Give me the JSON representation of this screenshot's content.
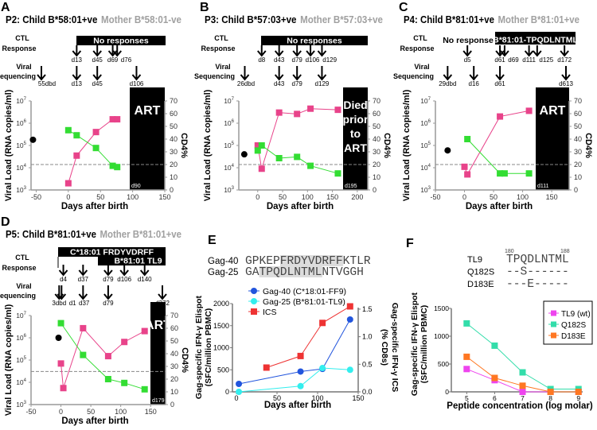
{
  "chart_data": [
    {
      "type": "line",
      "letter": "A",
      "title_child": "P2: Child B*58:01+ve",
      "title_mother": "Mother B*58:01-ve",
      "ctl_label": [
        "CTL",
        "Response"
      ],
      "seq_label": [
        "Viral",
        "Sequencing"
      ],
      "ctl_bars": [
        {
          "text": "No responses"
        }
      ],
      "ctl_note": null,
      "ctl_arrows": [
        {
          "day": 13,
          "label": "d13"
        },
        {
          "day": 45,
          "label": "d45"
        },
        {
          "day": 69,
          "label": "d69"
        },
        {
          "day": 76,
          "label": "d76"
        }
      ],
      "seq_arrows": [
        {
          "day": -55,
          "label": "55dbd"
        },
        {
          "day": 13,
          "label": "d13"
        },
        {
          "day": 45,
          "label": "d45"
        },
        {
          "day": 106,
          "label": "d106"
        }
      ],
      "xlabel": "Days after birth",
      "ylabel_left": "Viral Load (RNA copies/ml)",
      "ylabel_right": "CD4%",
      "xlim": [
        -58,
        150
      ],
      "xticks": [
        -50,
        0,
        50,
        100,
        150
      ],
      "ylim_left_log10": [
        3,
        7
      ],
      "yticks_left_exp": [
        3,
        4,
        5,
        6,
        7
      ],
      "log_base": "10",
      "ylim_right": [
        0,
        70
      ],
      "yticks_right": [
        0,
        10,
        20,
        30,
        40,
        50,
        60,
        70
      ],
      "cd4_threshold": 20,
      "treatment_box": {
        "lines": [
          "ART"
        ],
        "start_label": "d90"
      },
      "mother_viral_load": {
        "day": -55,
        "value": 180000,
        "color": "#000000"
      },
      "series": [
        {
          "name": "Viral load",
          "axis": "left",
          "color": "#e8438a",
          "x": [
            0,
            13,
            43,
            69,
            76
          ],
          "y": [
            2000,
            35000,
            400000,
            1500000,
            1500000
          ]
        },
        {
          "name": "CD4%",
          "axis": "right",
          "color": "#33dd33",
          "x": [
            0,
            13,
            43,
            69,
            76
          ],
          "y": [
            47,
            43,
            33,
            19,
            18
          ]
        }
      ]
    },
    {
      "type": "line",
      "letter": "B",
      "title_child": "P3:  Child B*57:03+ve",
      "title_mother": "Mother B*57:03+ve",
      "ctl_label": [
        "CTL",
        "Response"
      ],
      "seq_label": [
        "Viral",
        "Sequencing"
      ],
      "ctl_bars": [
        {
          "text": "No responses"
        }
      ],
      "ctl_note": null,
      "ctl_arrows": [
        {
          "day": 8,
          "label": "d8"
        },
        {
          "day": 43,
          "label": "d43"
        },
        {
          "day": 79,
          "label": "d79"
        },
        {
          "day": 106,
          "label": "d106"
        },
        {
          "day": 129,
          "label": "d129"
        }
      ],
      "seq_arrows": [
        {
          "day": -26,
          "label": "26dbd"
        },
        {
          "day": 43,
          "label": "d43"
        },
        {
          "day": 79,
          "label": "d79"
        },
        {
          "day": 129,
          "label": "d129"
        }
      ],
      "xlabel": "Days after birth",
      "ylabel_left": "Viral Load (RNA copies/ml)",
      "ylabel_right": "CD4%",
      "xlim": [
        -38,
        221
      ],
      "xticks": [
        0,
        50,
        100,
        150,
        200
      ],
      "ylim_left_log10": [
        3,
        7
      ],
      "yticks_left_exp": [
        3,
        4,
        5,
        6,
        7
      ],
      "log_base": "10",
      "ylim_right": [
        0,
        70
      ],
      "yticks_right": [
        0,
        10,
        20,
        30,
        40,
        50,
        60,
        70
      ],
      "cd4_threshold": 20,
      "treatment_box": {
        "lines": [
          "Died",
          "prior",
          "to",
          "ART"
        ],
        "start_label": "d195"
      },
      "mother_viral_load": {
        "day": -27,
        "value": 40000,
        "color": "#000000"
      },
      "series": [
        {
          "name": "Viral load",
          "axis": "left",
          "color": "#e8438a",
          "x": [
            0,
            8,
            43,
            79,
            106,
            161
          ],
          "y": [
            100000,
            9000,
            3000000,
            2600000,
            4500000,
            4000000
          ]
        },
        {
          "name": "CD4%",
          "axis": "right",
          "color": "#33dd33",
          "x": [
            0,
            8,
            43,
            79,
            106,
            161
          ],
          "y": [
            31,
            35,
            25,
            26,
            19,
            13
          ]
        }
      ]
    },
    {
      "type": "line",
      "letter": "C",
      "title_child": "P4: Child B*81:01+ve",
      "title_mother": "Mother B*81:01+ve",
      "ctl_label": [
        "CTL",
        "Response"
      ],
      "seq_label": [
        "Viral",
        "Sequencing"
      ],
      "ctl_bars": [
        {
          "text": "B*81:01-TPQDLNTML"
        }
      ],
      "ctl_note": "No response",
      "ctl_arrows": [
        {
          "day": 5,
          "label": "d5"
        },
        {
          "day": 61,
          "label": "d61"
        },
        {
          "day": 69,
          "label": "d69"
        },
        {
          "day": 111,
          "label": "d111"
        },
        {
          "day": 125,
          "label": "d125"
        },
        {
          "day": 172,
          "label": "d172"
        }
      ],
      "seq_arrows": [
        {
          "day": -29,
          "label": "29dbd"
        },
        {
          "day": 16,
          "label": "d16"
        },
        {
          "day": 61,
          "label": "d61"
        },
        {
          "day": 613,
          "label": "d613"
        }
      ],
      "xlabel": "Days after birth",
      "ylabel_left": "Viral Load (RNA copies/ml)",
      "ylabel_right": "CD4%",
      "xlim": [
        -50,
        180
      ],
      "xticks": [
        -50,
        0,
        50,
        100,
        150
      ],
      "ylim_left_log10": [
        3,
        7
      ],
      "yticks_left_exp": [
        3,
        4,
        5,
        6,
        7
      ],
      "log_base": "10",
      "ylim_right": [
        0,
        70
      ],
      "yticks_right": [
        0,
        10,
        20,
        30,
        40,
        50,
        60,
        70
      ],
      "cd4_threshold": 20,
      "treatment_box": {
        "lines": [
          "ART"
        ],
        "start_label": "d111"
      },
      "mother_viral_load": {
        "day": -29,
        "value": 60000,
        "color": "#000000"
      },
      "series": [
        {
          "name": "Viral load",
          "axis": "left",
          "color": "#e8438a",
          "x": [
            0,
            5,
            61,
            111
          ],
          "y": [
            11000,
            5000,
            2000000,
            3600000
          ]
        },
        {
          "name": "CD4%",
          "axis": "right",
          "color": "#33dd33",
          "x": [
            5,
            61,
            69,
            111
          ],
          "y": [
            40,
            13,
            13,
            13
          ]
        }
      ]
    },
    {
      "type": "line",
      "letter": "D",
      "title_child": "P5: Child B*81:01+ve",
      "title_mother": "Mother B*81:01+ve",
      "ctl_label": [
        "CTL",
        "Response"
      ],
      "seq_label": [
        "Viral",
        "Sequencing"
      ],
      "ctl_bars": [
        {
          "text": "C*18:01 FRDYVDRFF"
        },
        {
          "text": "B*81:01 TL9"
        }
      ],
      "ctl_note": null,
      "ctl_arrows": [
        {
          "day": 4,
          "label": "d4"
        },
        {
          "day": 37,
          "label": "d37"
        },
        {
          "day": 79,
          "label": "d79"
        },
        {
          "day": 106,
          "label": "d106"
        },
        {
          "day": 140,
          "label": "d140"
        }
      ],
      "seq_arrows": [
        {
          "day": -3,
          "label": "3dbd"
        },
        {
          "day": 1,
          "label": "d1"
        },
        {
          "day": 37,
          "label": "d37"
        },
        {
          "day": 79,
          "label": "d79"
        },
        {
          "day": 372,
          "label": "d372"
        }
      ],
      "xlabel": "Days after birth",
      "ylabel_left": "Viral Load (RNA copies/ml)",
      "ylabel_right": "CD4%",
      "xlim": [
        -50,
        175
      ],
      "xticks": [
        -50,
        0,
        50,
        100,
        150
      ],
      "ylim_left_log10": [
        3,
        7
      ],
      "yticks_left_exp": [
        3,
        4,
        5,
        6,
        7
      ],
      "log_base": "10",
      "ylim_right": [
        0,
        70
      ],
      "yticks_right": [
        0,
        10,
        20,
        30,
        40,
        50,
        60,
        70
      ],
      "cd4_threshold": 26,
      "treatment_box": {
        "lines": [
          "ART"
        ],
        "start_label": "d179"
      },
      "mother_viral_load": {
        "day": -4,
        "value": 1000000,
        "color": "#000000"
      },
      "series": [
        {
          "name": "Viral load",
          "axis": "left",
          "color": "#e8438a",
          "x": [
            0,
            4,
            37,
            79,
            106,
            140
          ],
          "y": [
            70000,
            5500,
            2700000,
            150000,
            650000,
            2000000
          ]
        },
        {
          "name": "CD4%",
          "axis": "right",
          "color": "#33dd33",
          "x": [
            0,
            37,
            79,
            106,
            140
          ],
          "y": [
            64,
            39,
            20,
            17,
            12
          ]
        }
      ]
    },
    {
      "type": "line",
      "letter": "E",
      "sequences": [
        {
          "name": "Gag-40",
          "seq": "GPKEPFRDYVDRFFKTLR",
          "highlight": "FRDYVDRFF"
        },
        {
          "name": "Gag-25",
          "seq": "GATPQDLNTMLNTVGGH",
          "highlight": "TPQDLNTML"
        }
      ],
      "xlabel": "Days after birth",
      "ylabel_left": [
        "Gag-specific IFN-γ Elispot",
        "(SFC/million PBMC)"
      ],
      "ylabel_right": [
        "Gag-specific IFN-γ ICS",
        "(% CD8s)"
      ],
      "xlim": [
        0,
        150
      ],
      "xticks": [
        0,
        50,
        100,
        150
      ],
      "ylim_left": [
        0,
        2000
      ],
      "yticks_left": [
        0,
        500,
        1000,
        1500,
        2000
      ],
      "ylim_right": [
        0,
        1.6
      ],
      "yticks_right": [
        "0.0",
        "0.5",
        "1.0",
        "1.5"
      ],
      "legend": "top-left",
      "series": [
        {
          "name": "Gag-40 (C*18:01-FF9)",
          "axis": "left",
          "marker": "circle",
          "color": "#2255dd",
          "x": [
            3,
            79,
            106,
            140
          ],
          "y": [
            180,
            460,
            520,
            1640
          ]
        },
        {
          "name": "Gag-25 (B*81:01-TL9)",
          "axis": "left",
          "marker": "circle",
          "color": "#33eeee",
          "x": [
            3,
            79,
            106,
            140
          ],
          "y": [
            0,
            130,
            540,
            500
          ]
        },
        {
          "name": "ICS",
          "axis": "right",
          "marker": "square",
          "color": "#ee3333",
          "x": [
            37,
            79,
            106,
            140
          ],
          "y": [
            0.44,
            0.65,
            1.25,
            1.55
          ]
        }
      ]
    },
    {
      "type": "line",
      "letter": "F",
      "alignment": {
        "start_pos": "180",
        "end_pos": "188",
        "rows": [
          {
            "name": "TL9",
            "seq": "TPQDLNTML"
          },
          {
            "name": "Q182S",
            "seq": "--S------"
          },
          {
            "name": "D183E",
            "seq": "---E-----"
          }
        ]
      },
      "xlabel": "Peptide concentration (log molar)",
      "ylabel": [
        "Gag-specific IFN-γ Elispot",
        "(SFC/million PBMC)"
      ],
      "xlim": [
        4.45,
        9.15
      ],
      "xticks": [
        5,
        6,
        7,
        8,
        9
      ],
      "ylim": [
        0,
        1500
      ],
      "yticks": [
        0,
        500,
        1000,
        1500
      ],
      "legend": "top-right",
      "series": [
        {
          "name": "TL9 (wt)",
          "color": "#ee44ee",
          "x": [
            5,
            6,
            7,
            8,
            9
          ],
          "y": [
            410,
            210,
            0,
            0,
            0
          ]
        },
        {
          "name": "Q182S",
          "color": "#33ddaa",
          "x": [
            5,
            6,
            7,
            8,
            9
          ],
          "y": [
            1230,
            830,
            350,
            50,
            50
          ]
        },
        {
          "name": "D183E",
          "color": "#ff7722",
          "x": [
            5,
            6,
            7,
            8,
            9
          ],
          "y": [
            630,
            250,
            110,
            0,
            0
          ]
        }
      ]
    }
  ]
}
